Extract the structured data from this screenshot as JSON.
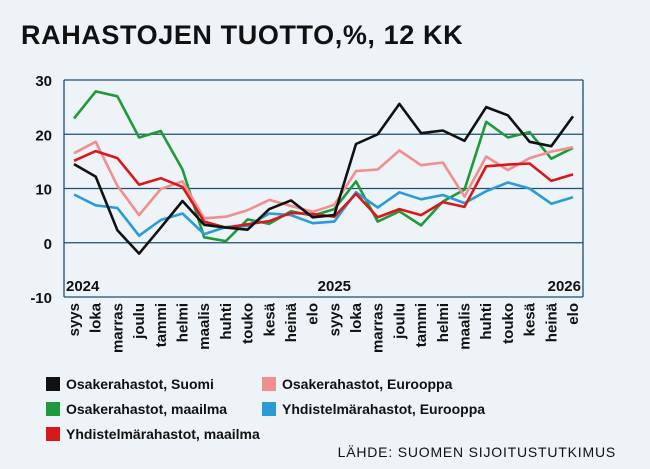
{
  "title": "RAHASTOJEN TUOTTO,%, 12 KK",
  "source": "LÄHDE: SUOMEN SIJOITUSTUTKIMUS",
  "chart_data": {
    "type": "line",
    "title": "RAHASTOJEN TUOTTO,%, 12 KK",
    "xlabel": "",
    "ylabel": "",
    "ylim": [
      -10,
      30
    ],
    "yticks": [
      -10,
      0,
      10,
      20,
      30
    ],
    "grid": true,
    "legend": "bottom",
    "year_labels": [
      {
        "label": "2024",
        "at": "syys"
      },
      {
        "label": "2025",
        "at": "syys"
      },
      {
        "label": "2026",
        "at": "elo"
      }
    ],
    "categories": [
      "syys",
      "loka",
      "marras",
      "joulu",
      "tammi",
      "helmi",
      "maalis",
      "huhti",
      "touko",
      "kesä",
      "heinä",
      "elo",
      "syys",
      "loka",
      "marras",
      "joulu",
      "tammi",
      "helmi",
      "maalis",
      "huhti",
      "touko",
      "kesä",
      "heinä",
      "elo"
    ],
    "series": [
      {
        "name": "Osakerahastot, Suomi",
        "color": "#111111",
        "values": [
          14.5,
          12.2,
          2.3,
          -2.0,
          2.8,
          7.7,
          3.3,
          2.8,
          2.4,
          6.2,
          7.8,
          4.7,
          5.1,
          18.2,
          20.0,
          25.6,
          20.2,
          20.7,
          18.8,
          25.0,
          23.5,
          18.6,
          17.8,
          23.3
        ]
      },
      {
        "name": "Osakerahastot, Eurooppa",
        "color": "#ef8f90",
        "values": [
          16.5,
          18.6,
          10.5,
          5.1,
          9.9,
          11.3,
          4.5,
          4.8,
          6.0,
          7.9,
          6.8,
          5.7,
          7.0,
          13.2,
          13.5,
          17.0,
          14.3,
          14.8,
          8.5,
          15.9,
          13.4,
          15.6,
          16.8,
          17.6
        ]
      },
      {
        "name": "Osakerahastot, maailma",
        "color": "#1f9a3a",
        "values": [
          22.9,
          27.9,
          27.0,
          19.4,
          20.6,
          13.5,
          1.0,
          0.3,
          4.3,
          3.5,
          5.8,
          5.0,
          6.2,
          11.3,
          3.9,
          5.8,
          3.2,
          7.6,
          9.8,
          22.3,
          19.4,
          20.4,
          15.5,
          17.5
        ]
      },
      {
        "name": "Yhdistelmärahastot, Eurooppa",
        "color": "#2b9bd6",
        "values": [
          8.9,
          6.9,
          6.4,
          1.3,
          4.2,
          5.4,
          1.6,
          2.9,
          3.1,
          5.4,
          5.1,
          3.6,
          3.9,
          9.3,
          6.5,
          9.3,
          8.0,
          8.8,
          7.3,
          9.5,
          11.1,
          10.0,
          7.2,
          8.4
        ]
      },
      {
        "name": "Yhdistelmärahastot, maailma",
        "color": "#d7191c",
        "values": [
          15.1,
          16.9,
          15.6,
          10.7,
          11.9,
          10.3,
          3.9,
          2.8,
          3.4,
          4.0,
          5.5,
          5.3,
          4.8,
          9.0,
          4.7,
          6.2,
          5.1,
          7.5,
          6.6,
          14.1,
          14.4,
          14.6,
          11.4,
          12.6
        ]
      }
    ]
  }
}
